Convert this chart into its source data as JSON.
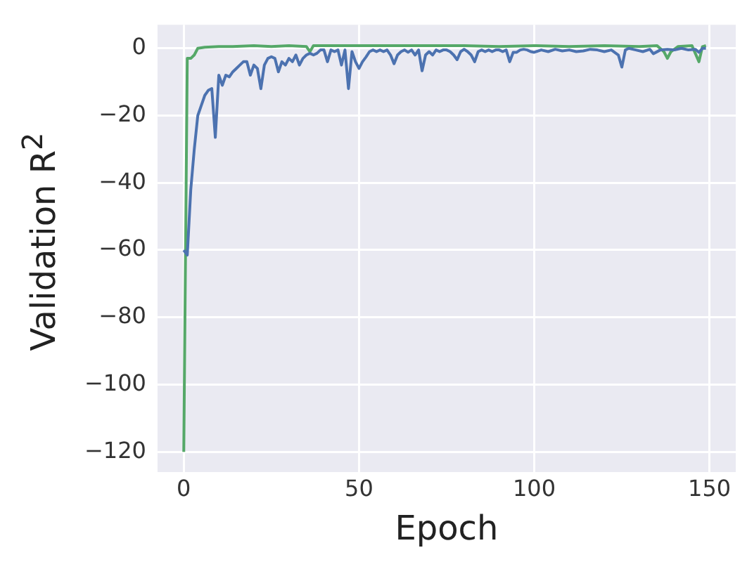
{
  "chart_data": {
    "type": "line",
    "xlabel": "Epoch",
    "ylabel": "Validation R$^{2}$",
    "xlim": [
      -7.5,
      157.5
    ],
    "ylim": [
      -126,
      7
    ],
    "xticks": [
      0,
      50,
      100,
      150
    ],
    "yticks": [
      -120,
      -100,
      -80,
      -60,
      -40,
      -20,
      0
    ],
    "grid": true,
    "legend": false,
    "marker": "none",
    "line_style": "solid",
    "series": [
      {
        "color": "#4c72b0",
        "x": [
          0,
          1,
          2,
          3,
          4,
          5,
          6,
          7,
          8,
          9,
          10,
          11,
          12,
          13,
          14,
          15,
          16,
          17,
          18,
          19,
          20,
          21,
          22,
          23,
          24,
          25,
          26,
          27,
          28,
          29,
          30,
          31,
          32,
          33,
          34,
          35,
          36,
          37,
          38,
          39,
          40,
          41,
          42,
          43,
          44,
          45,
          46,
          47,
          48,
          49,
          50,
          51,
          52,
          53,
          54,
          55,
          56,
          57,
          58,
          59,
          60,
          61,
          62,
          63,
          64,
          65,
          66,
          67,
          68,
          69,
          70,
          71,
          72,
          73,
          74,
          75,
          76,
          77,
          78,
          79,
          80,
          81,
          82,
          83,
          84,
          85,
          86,
          87,
          88,
          89,
          90,
          91,
          92,
          93,
          94,
          95,
          96,
          97,
          98,
          99,
          100,
          102,
          104,
          106,
          108,
          110,
          112,
          114,
          116,
          118,
          120,
          122,
          124,
          125,
          126,
          127,
          129,
          131,
          133,
          134,
          136,
          138,
          140,
          142,
          144,
          146,
          147,
          148,
          149
        ],
        "values": [
          -60,
          -61.5,
          -42,
          -30,
          -20,
          -17,
          -14,
          -12.5,
          -12,
          -26.5,
          -8,
          -11,
          -8,
          -8.5,
          -7,
          -6,
          -5,
          -4,
          -4,
          -8,
          -5,
          -6,
          -12,
          -5,
          -3,
          -2.5,
          -3,
          -7,
          -4,
          -5,
          -3,
          -4,
          -2,
          -5,
          -3,
          -2,
          -1.5,
          -2,
          -1.5,
          -0.5,
          -0.5,
          -4,
          -0.5,
          -1,
          -0.5,
          -5,
          -0.5,
          -12,
          -1,
          -4,
          -6,
          -4,
          -2.6,
          -1,
          -0.5,
          -1,
          -0.5,
          -1,
          -0.5,
          -2,
          -4.6,
          -2,
          -1,
          -0.5,
          -1.2,
          -0.5,
          -2,
          -0.5,
          -6.7,
          -2,
          -1,
          -2,
          -0.5,
          -1,
          -0.5,
          -0.5,
          -1,
          -2,
          -3.4,
          -1,
          -0.3,
          -1,
          -2,
          -4,
          -1,
          -0.5,
          -1,
          -0.5,
          -1,
          -0.5,
          -0.5,
          -1,
          -0.5,
          -4,
          -1.2,
          -1.2,
          -0.5,
          -0.3,
          -0.5,
          -1,
          -1.2,
          -0.5,
          -1,
          -0.3,
          -0.8,
          -0.5,
          -1,
          -0.8,
          -0.3,
          -0.5,
          -1,
          -0.5,
          -2,
          -5.6,
          -0.5,
          0,
          -0.5,
          -1,
          -0.3,
          -1.6,
          -0.5,
          -0.3,
          -0.5,
          0,
          -0.5,
          -0.3,
          -1.2,
          0,
          0
        ]
      },
      {
        "color": "#55a868",
        "x": [
          0,
          1,
          2,
          3,
          4,
          6,
          10,
          14,
          20,
          25,
          30,
          35,
          36,
          37,
          40,
          50,
          60,
          70,
          80,
          90,
          100,
          110,
          120,
          130,
          135,
          137,
          138,
          139,
          141,
          145,
          147,
          148,
          149
        ],
        "values": [
          -120,
          -3,
          -3,
          -2,
          0,
          0.3,
          0.5,
          0.5,
          0.8,
          0.5,
          0.8,
          0.5,
          -1,
          0.8,
          0.8,
          0.8,
          0.8,
          0.8,
          0.8,
          0.5,
          0.8,
          0.5,
          0.8,
          0.5,
          0.8,
          -1,
          -3,
          -1,
          0.5,
          0.8,
          -4,
          0.5,
          0.8
        ]
      }
    ]
  }
}
